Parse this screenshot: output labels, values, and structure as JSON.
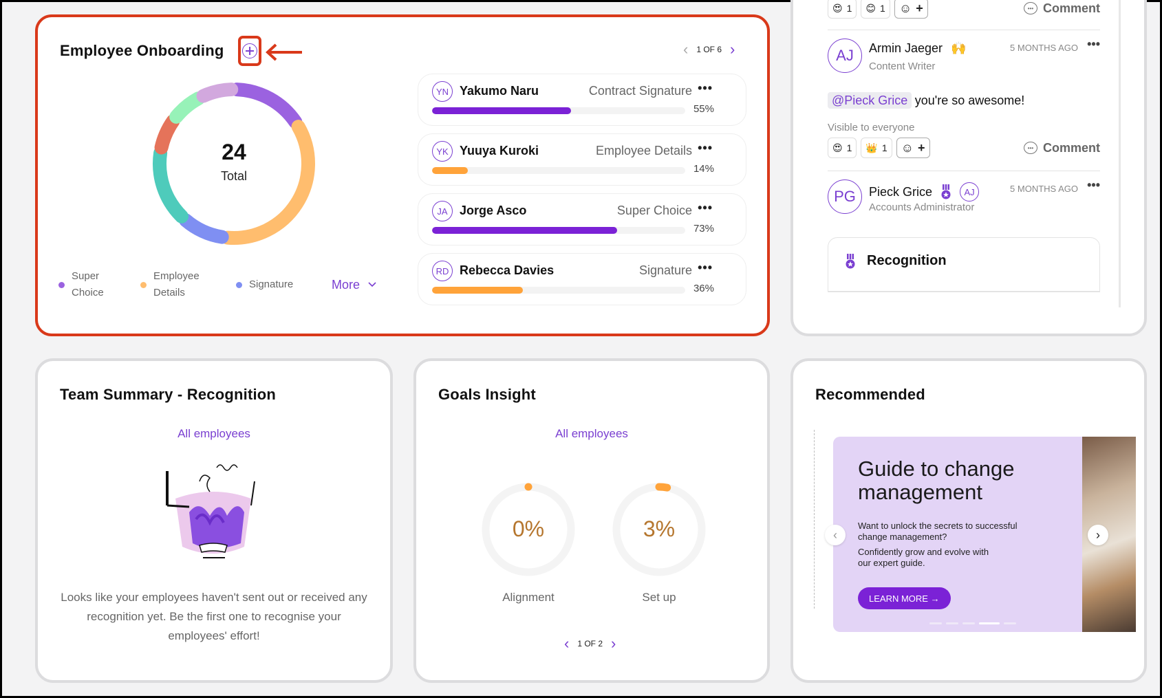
{
  "onboarding": {
    "title": "Employee Onboarding",
    "add_icon": "plus-circle-icon",
    "pager": {
      "prev": "‹",
      "label": "1 OF 6",
      "next": "›"
    },
    "total_value": "24",
    "total_label": "Total",
    "legend": [
      {
        "label": "Super Choice",
        "color": "#9b62e0"
      },
      {
        "label": "Employee Details",
        "color": "#ffbd6e"
      },
      {
        "label": "Signature",
        "color": "#7f8ff2"
      }
    ],
    "more_label": "More",
    "employees": [
      {
        "initials": "YN",
        "name": "Yakumo Naru",
        "stage": "Contract Signature",
        "progress": 55,
        "progress_label": "55%",
        "color": "#7b22d6"
      },
      {
        "initials": "YK",
        "name": "Yuuya Kuroki",
        "stage": "Employee Details",
        "progress": 14,
        "progress_label": "14%",
        "color": "#ffa33a"
      },
      {
        "initials": "JA",
        "name": "Jorge Asco",
        "stage": "Super Choice",
        "progress": 73,
        "progress_label": "73%",
        "color": "#7b22d6"
      },
      {
        "initials": "RD",
        "name": "Rebecca Davies",
        "stage": "Signature",
        "progress": 36,
        "progress_label": "36%",
        "color": "#ffa33a"
      }
    ]
  },
  "chart_data": {
    "type": "pie",
    "title": "Employee Onboarding",
    "total": 24,
    "segments": [
      {
        "name": "Super Choice",
        "color": "#9b62e0",
        "share": 0.12
      },
      {
        "name": "Employee Details",
        "color": "#ffbd6e",
        "share": 0.28
      },
      {
        "name": "Signature",
        "color": "#7f8ff2",
        "share": 0.07
      },
      {
        "name": "Teal stage",
        "color": "#4ecbbb",
        "share": 0.12
      },
      {
        "name": "Red stage",
        "color": "#e5735a",
        "share": 0.05
      },
      {
        "name": "Green stage",
        "color": "#97f2b8",
        "share": 0.05
      },
      {
        "name": "Lilac stage",
        "color": "#d2a8de",
        "share": 0.05
      }
    ],
    "legend_placement": "bottom"
  },
  "feed": {
    "top_reactions": [
      {
        "emoji": "😍",
        "count": "1"
      },
      {
        "emoji": "😊",
        "count": "1"
      }
    ],
    "comment_label": "Comment",
    "posts": [
      {
        "initials": "AJ",
        "name": "Armin Jaeger",
        "badge_emoji": "🙌",
        "role": "Content Writer",
        "time": "5 MONTHS AGO",
        "mention": "@Pieck Grice",
        "message": "you're so awesome!",
        "visibility": "Visible to everyone",
        "reactions": [
          {
            "emoji": "😍",
            "count": "1"
          },
          {
            "emoji": "👑",
            "count": "1"
          }
        ]
      },
      {
        "initials": "PG",
        "name": "Pieck Grice",
        "badge": "medal-icon",
        "mini_avatar": "AJ",
        "role": "Accounts Administrator",
        "time": "5 MONTHS AGO"
      }
    ],
    "recognition_title": "Recognition"
  },
  "team_summary": {
    "title": "Team Summary - Recognition",
    "filter": "All employees",
    "empty_text": "Looks like your employees haven't sent out or received any recognition yet. Be the first one to recognise your employees' effort!"
  },
  "goals": {
    "title": "Goals Insight",
    "filter": "All employees",
    "gauges": [
      {
        "label": "Alignment",
        "value": 0,
        "value_label": "0%"
      },
      {
        "label": "Set up",
        "value": 3,
        "value_label": "3%"
      }
    ],
    "pager": {
      "prev": "‹",
      "label": "1 OF 2",
      "next": "›"
    }
  },
  "recommended": {
    "title": "Recommended",
    "banner_title": "Guide to change management",
    "banner_text_1": "Want to unlock the secrets to successful change management?",
    "banner_text_2": "Confidently grow and evolve with our expert guide.",
    "cta": "LEARN MORE →",
    "slides": 6,
    "active_slide": 4
  }
}
